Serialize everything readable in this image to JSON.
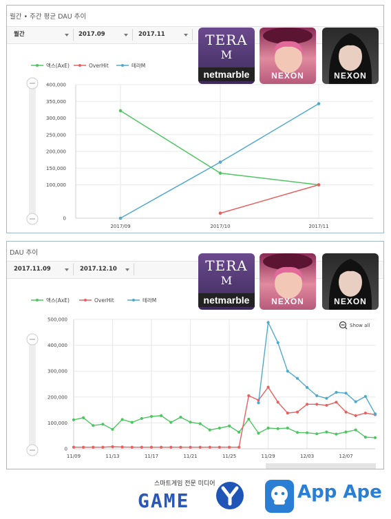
{
  "panel1": {
    "title": "월간 • 주간 평균 DAU 추이",
    "filters": [
      "월간",
      "2017.09",
      "2017.11"
    ]
  },
  "panel2": {
    "title": "DAU 추이",
    "filters": [
      "2017.11.09",
      "2017.12.10"
    ],
    "show_all_label": "Show all"
  },
  "apps": {
    "tera_line1": "TERA",
    "tera_line2": "M",
    "tera_brand": "netmarble",
    "overhit_brand": "NEXON",
    "axe_brand": "NEXON"
  },
  "footer": {
    "media_caption": "스마트게임 전문 미디어",
    "gamey_logo": "GAME",
    "appape_logo": "App Ape"
  },
  "colors": {
    "axe": "#4dc561",
    "overhit": "#e5605e",
    "teram": "#4fa9cc"
  },
  "chart_data": [
    {
      "type": "line",
      "categories": [
        "2017/09",
        "2017/10",
        "2017/11"
      ],
      "ylim": [
        0,
        400000
      ],
      "yticks": [
        "0",
        "100,000",
        "150,000",
        "200,000",
        "250,000",
        "300,000",
        "350,000",
        "400,000"
      ],
      "series": [
        {
          "name": "액스(AxE)",
          "values": [
            322000,
            135000,
            100000
          ]
        },
        {
          "name": "OverHit",
          "values": [
            null,
            15000,
            100000
          ]
        },
        {
          "name": "테라M",
          "values": [
            0,
            168000,
            343000
          ]
        }
      ]
    },
    {
      "type": "line",
      "x": [
        "11/09",
        "11/10",
        "11/11",
        "11/12",
        "11/13",
        "11/14",
        "11/15",
        "11/16",
        "11/17",
        "11/18",
        "11/19",
        "11/20",
        "11/21",
        "11/22",
        "11/23",
        "11/24",
        "11/25",
        "11/26",
        "11/27",
        "11/28",
        "11/29",
        "11/30",
        "12/01",
        "12/02",
        "12/03",
        "12/04",
        "12/05",
        "12/06",
        "12/07",
        "12/08",
        "12/09",
        "12/10"
      ],
      "xticks": [
        "11/09",
        "11/13",
        "11/17",
        "11/21",
        "11/25",
        "11/29",
        "12/03",
        "12/07"
      ],
      "ylim": [
        0,
        500000
      ],
      "yticks": [
        "0",
        "100,000",
        "200,000",
        "300,000",
        "400,000",
        "500,000"
      ],
      "series": [
        {
          "name": "액스(AxE)",
          "values": [
            112000,
            120000,
            90000,
            95000,
            75000,
            113000,
            102000,
            117000,
            125000,
            128000,
            102000,
            122000,
            103000,
            97000,
            73000,
            80000,
            88000,
            64000,
            115000,
            60000,
            80000,
            78000,
            80000,
            63000,
            62000,
            58000,
            65000,
            57000,
            65000,
            73000,
            45000,
            43000
          ]
        },
        {
          "name": "OverHit",
          "values": [
            6000,
            6000,
            6000,
            6000,
            8000,
            7000,
            6000,
            6000,
            6000,
            6000,
            6000,
            6000,
            6000,
            6000,
            6000,
            6000,
            6000,
            6000,
            205000,
            188000,
            238000,
            180000,
            138000,
            142000,
            172000,
            172000,
            168000,
            180000,
            142000,
            128000,
            138000,
            132000
          ]
        },
        {
          "name": "테라M",
          "values": [
            null,
            null,
            null,
            null,
            null,
            null,
            null,
            null,
            null,
            null,
            null,
            null,
            null,
            null,
            null,
            null,
            null,
            null,
            null,
            178000,
            488000,
            410000,
            300000,
            272000,
            237000,
            205000,
            195000,
            218000,
            215000,
            182000,
            202000,
            135000
          ]
        }
      ]
    }
  ]
}
